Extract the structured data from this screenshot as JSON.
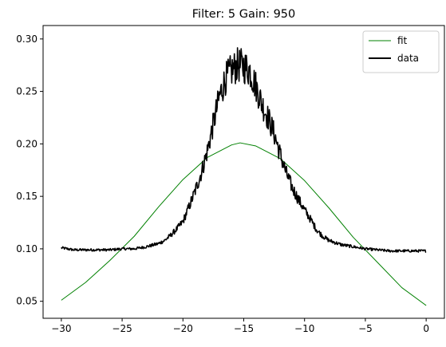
{
  "chart_data": {
    "type": "line",
    "title": "Filter: 5 Gain: 950",
    "xlabel": "",
    "ylabel": "",
    "xlim": [
      -31.5,
      1.5
    ],
    "ylim": [
      0.0338,
      0.3128
    ],
    "grid": false,
    "legend_position": "top-right",
    "x_ticks": [
      -30,
      -25,
      -20,
      -15,
      -10,
      -5,
      0
    ],
    "x_tick_labels": [
      "−30",
      "−25",
      "−20",
      "−15",
      "−10",
      "−5",
      "0"
    ],
    "y_ticks": [
      0.05,
      0.1,
      0.15,
      0.2,
      0.25,
      0.3
    ],
    "y_tick_labels": [
      "0.05",
      "0.10",
      "0.15",
      "0.20",
      "0.25",
      "0.30"
    ],
    "series": [
      {
        "name": "fit",
        "color": "#008000",
        "style": "thin-line",
        "x": [
          -30,
          -28,
          -26,
          -24,
          -22,
          -20,
          -18,
          -16,
          -15.3,
          -14,
          -12,
          -10,
          -8,
          -6,
          -4,
          -2,
          0
        ],
        "y": [
          0.051,
          0.068,
          0.089,
          0.112,
          0.14,
          0.166,
          0.187,
          0.199,
          0.201,
          0.198,
          0.186,
          0.165,
          0.139,
          0.111,
          0.087,
          0.063,
          0.046
        ]
      },
      {
        "name": "data",
        "color": "#000000",
        "style": "thick-noisy-line",
        "x": [
          -30,
          -29,
          -28,
          -27,
          -26,
          -25,
          -24,
          -23,
          -22,
          -21.5,
          -21,
          -20.5,
          -20,
          -19.5,
          -19,
          -18.5,
          -18,
          -17.5,
          -17,
          -16.5,
          -16,
          -15.5,
          -15,
          -14.5,
          -14,
          -13.5,
          -13,
          -12.5,
          -12,
          -11.5,
          -11,
          -10.5,
          -10,
          -9.5,
          -9,
          -8.5,
          -8,
          -7.5,
          -7,
          -6,
          -5,
          -4,
          -3,
          -2,
          -1,
          0
        ],
        "y": [
          0.101,
          0.099,
          0.099,
          0.099,
          0.099,
          0.1,
          0.1,
          0.102,
          0.105,
          0.108,
          0.113,
          0.119,
          0.126,
          0.14,
          0.155,
          0.172,
          0.193,
          0.219,
          0.245,
          0.262,
          0.27,
          0.275,
          0.274,
          0.27,
          0.255,
          0.238,
          0.225,
          0.21,
          0.19,
          0.172,
          0.158,
          0.147,
          0.137,
          0.128,
          0.118,
          0.112,
          0.108,
          0.106,
          0.104,
          0.102,
          0.1,
          0.099,
          0.098,
          0.098,
          0.098,
          0.098
        ]
      }
    ]
  }
}
